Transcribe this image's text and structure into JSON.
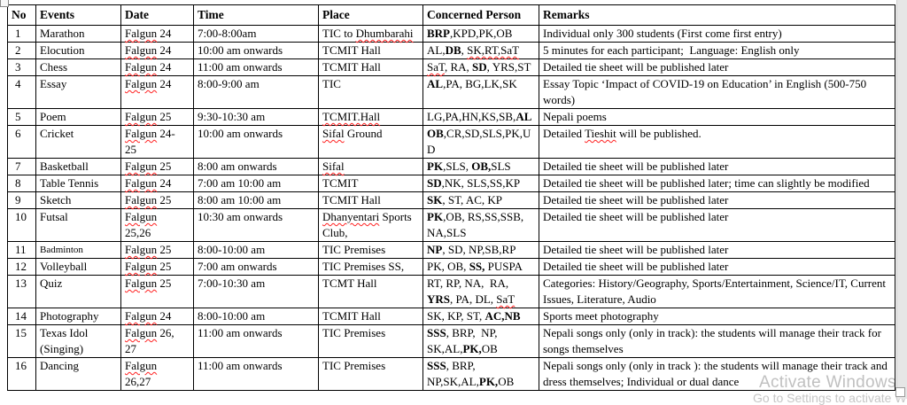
{
  "page": {
    "background": "#ffffff",
    "table_border_color": "#000000",
    "spellcheck_squiggle_color": "#ff2020",
    "edge_strip_color": "#e6e6e6"
  },
  "icons": {
    "table_move_handle": "small square handle at table top-left",
    "window_resize_box": "small white square at bottom-right edge"
  },
  "watermark": {
    "line1": "Activate Windows",
    "line2": "Go to Settings to activate Wi",
    "color": "#bdbdbd"
  },
  "table": {
    "headers": [
      "No",
      "Events",
      "Date",
      "Time",
      "Place",
      "Concerned Person",
      "Remarks"
    ],
    "rows": [
      {
        "no": "1",
        "event": "Marathon",
        "date": [
          {
            "t": "Falgun",
            "w": 1
          },
          {
            "t": " 24"
          }
        ],
        "time": "7:00-8:00am",
        "place": [
          {
            "t": "TIC to "
          },
          {
            "t": "Dhumbarahi",
            "w": 1
          }
        ],
        "persons": [
          {
            "t": "BRP",
            "b": 1
          },
          {
            "t": ",KPD,PK,OB"
          }
        ],
        "remarks": "Individual only 300 students (First come first entry)"
      },
      {
        "no": "2",
        "event": "Elocution",
        "date": [
          {
            "t": "Falgun",
            "w": 1
          },
          {
            "t": " 24"
          }
        ],
        "time": "10:00 am onwards",
        "place": "TCMIT Hall",
        "persons": [
          {
            "t": "AL,"
          },
          {
            "t": "DB",
            "b": 1
          },
          {
            "t": ", "
          },
          {
            "t": "SK,RT,SaT",
            "w": 1
          }
        ],
        "remarks": "5 minutes for each participant;  Language: English only"
      },
      {
        "no": "3",
        "event": "Chess",
        "date": [
          {
            "t": "Falgun",
            "w": 1
          },
          {
            "t": " 24"
          }
        ],
        "time": "11:00 am onwards",
        "place": "TCMIT Hall",
        "persons": [
          {
            "t": "SaT",
            "w": 1
          },
          {
            "t": ", RA, "
          },
          {
            "t": "SD",
            "b": 1
          },
          {
            "t": ", YRS,ST"
          }
        ],
        "remarks": "Detailed tie sheet will be published later"
      },
      {
        "no": "4",
        "event": "Essay",
        "date": [
          {
            "t": "Falgun",
            "w": 1
          },
          {
            "t": " 24"
          }
        ],
        "time": "8:00-9:00 am",
        "place": "TIC",
        "persons": [
          {
            "t": "AL",
            "b": 1
          },
          {
            "t": ",PA, BG,LK,SK"
          }
        ],
        "remarks": "Essay Topic ‘Impact of COVID-19 on Education’ in English (500-750 words)"
      },
      {
        "no": "5",
        "event": "Poem",
        "date": [
          {
            "t": "Falgun",
            "w": 1
          },
          {
            "t": " 25"
          }
        ],
        "time": "9:30-10:30 am",
        "place": [
          {
            "t": "TCMIT.Hall",
            "w": 1
          }
        ],
        "persons": [
          {
            "t": "LG,PA,HN,KS,SB,"
          },
          {
            "t": "AL",
            "b": 1
          }
        ],
        "remarks": "Nepali poems"
      },
      {
        "no": "6",
        "event": "Cricket",
        "date": [
          {
            "t": "Falgun",
            "w": 1
          },
          {
            "t": " 24-25"
          }
        ],
        "time": "10:00 am onwards",
        "place": [
          {
            "t": "Sifal",
            "w": 1
          },
          {
            "t": " Ground"
          }
        ],
        "persons": [
          {
            "t": "OB",
            "b": 1
          },
          {
            "t": ",CR,SD,SLS,PK,UD"
          }
        ],
        "remarks": [
          {
            "t": "Detailed "
          },
          {
            "t": "Tieshit",
            "w": 1
          },
          {
            "t": " will be published."
          }
        ]
      },
      {
        "no": "7",
        "event": "Basketball",
        "date": [
          {
            "t": "Falgun",
            "w": 1
          },
          {
            "t": " 25"
          }
        ],
        "time": "8:00 am onwards",
        "place": [
          {
            "t": "Sifal",
            "w": 1
          }
        ],
        "persons": [
          {
            "t": "PK",
            "b": 1
          },
          {
            "t": ",SLS, "
          },
          {
            "t": "OB,",
            "b": 1
          },
          {
            "t": "SLS"
          }
        ],
        "remarks": "Detailed tie sheet will be published later"
      },
      {
        "no": "8",
        "event": "Table Tennis",
        "date": [
          {
            "t": "Falgun",
            "w": 1
          },
          {
            "t": " 24"
          }
        ],
        "time": "7:00 am 10:00 am",
        "place": "TCMIT",
        "persons": [
          {
            "t": "SD",
            "b": 1
          },
          {
            "t": ",NK, SLS,SS,KP"
          }
        ],
        "remarks": "Detailed tie sheet will be published later; time can slightly be modified"
      },
      {
        "no": "9",
        "event": "Sketch",
        "date": [
          {
            "t": "Falgun",
            "w": 1
          },
          {
            "t": " 25"
          }
        ],
        "time": "8:00 am 10:00 am",
        "place": "TCMIT Hall",
        "persons": [
          {
            "t": "SK",
            "b": 1
          },
          {
            "t": ", ST, AC, KP"
          }
        ],
        "remarks": "Detailed tie sheet will be published later"
      },
      {
        "no": "10",
        "event": "Futsal",
        "date": [
          {
            "t": "Falgun",
            "w": 1
          },
          {
            "t": " 25,26"
          }
        ],
        "time": "10:30 am onwards",
        "place": [
          {
            "t": "Dhanyentari",
            "w": 1
          },
          {
            "t": " Sports Club,"
          }
        ],
        "persons": [
          {
            "t": "PK",
            "b": 1
          },
          {
            "t": ",OB, RS,SS,SSB, NA,SLS"
          }
        ],
        "remarks": "Detailed tie sheet will be published later"
      },
      {
        "no": "11",
        "event": "Badminton",
        "small": true,
        "date": [
          {
            "t": "Falgun",
            "w": 1
          },
          {
            "t": " 25"
          }
        ],
        "time": "8:00-10:00 am",
        "place": "TIC Premises",
        "persons": [
          {
            "t": "NP",
            "b": 1
          },
          {
            "t": ", SD, NP,SB,RP"
          }
        ],
        "remarks": "Detailed tie sheet will be published later"
      },
      {
        "no": "12",
        "event": "Volleyball",
        "date": [
          {
            "t": "Falgun",
            "w": 1
          },
          {
            "t": " 25"
          }
        ],
        "time": "7:00 am onwards",
        "place": "TIC Premises SS,",
        "persons": [
          {
            "t": "PK, OB, "
          },
          {
            "t": "SS,",
            "b": 1
          },
          {
            "t": " PUSPA"
          }
        ],
        "remarks": "Detailed tie sheet will be published later"
      },
      {
        "no": "13",
        "event": "Quiz",
        "date": [
          {
            "t": "Falgun",
            "w": 1
          },
          {
            "t": " 25"
          }
        ],
        "time": "7:00-10:30 am",
        "place": "TCMT Hall",
        "persons": [
          {
            "t": "RT, RP, NA,  RA, "
          },
          {
            "t": "YRS",
            "b": 1
          },
          {
            "t": ", PA, DL, "
          },
          {
            "t": "SaT",
            "w": 1
          }
        ],
        "remarks": "Categories: History/Geography, Sports/Entertainment, Science/IT, Current Issues, Literature, Audio"
      },
      {
        "no": "14",
        "event": "Photography",
        "date": [
          {
            "t": "Falgun",
            "w": 1
          },
          {
            "t": " 24"
          }
        ],
        "time": "8:00-10:00 am",
        "place": "TCMIT Hall",
        "persons": [
          {
            "t": "SK, KP, ST, "
          },
          {
            "t": "AC,NB",
            "b": 1
          }
        ],
        "remarks": "Sports meet photography"
      },
      {
        "no": "15",
        "event": "Texas Idol (Singing)",
        "date": [
          {
            "t": "Falgun",
            "w": 1
          },
          {
            "t": " 26, 27"
          }
        ],
        "time": "11:00 am onwards",
        "place": "TIC Premises",
        "persons": [
          {
            "t": "SSS",
            "b": 1
          },
          {
            "t": ", BRP,  NP, SK,AL,"
          },
          {
            "t": "PK,",
            "b": 1
          },
          {
            "t": "OB"
          }
        ],
        "remarks": "Nepali songs only (only in track): the students will manage their track for songs themselves"
      },
      {
        "no": "16",
        "event": "Dancing",
        "date": [
          {
            "t": "Falgun",
            "w": 1
          },
          {
            "t": " 26,27"
          }
        ],
        "time": "11:00 am onwards",
        "place": "TIC Premises",
        "persons": [
          {
            "t": "SSS",
            "b": 1
          },
          {
            "t": ", BRP, NP,SK,AL,"
          },
          {
            "t": "PK,",
            "b": 1
          },
          {
            "t": "OB"
          }
        ],
        "remarks": "Nepali songs only (only in track ): the students will manage their track and dress themselves; Individual or dual dance"
      }
    ]
  }
}
